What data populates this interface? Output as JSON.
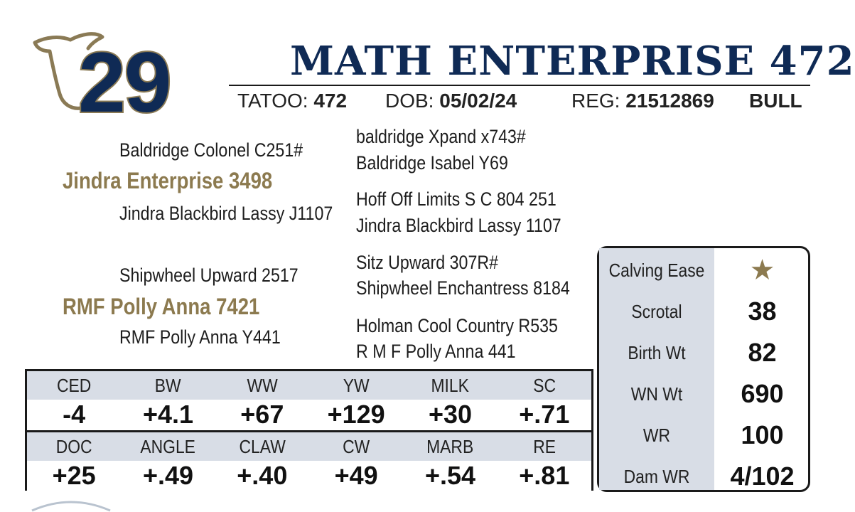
{
  "lot": {
    "number": "29"
  },
  "animal": {
    "name": "MATH ENTERPRISE 472",
    "tattoo_label": "TATOO:",
    "tattoo": "472",
    "dob_label": "DOB:",
    "dob": "05/02/24",
    "reg_label": "REG:",
    "reg": "21512869",
    "sex": "BULL"
  },
  "pedigree": {
    "sire": "Jindra Enterprise 3498",
    "sire_sire": "Baldridge Colonel C251#",
    "sire_dam": "Jindra Blackbird Lassy J1107",
    "sss": "baldridge Xpand x743#",
    "ssd": "Baldridge Isabel Y69",
    "sds": "Hoff Off Limits S C 804 251",
    "sdd": "Jindra Blackbird Lassy 1107",
    "dam": "RMF Polly Anna 7421",
    "dam_sire": "Shipwheel Upward 2517",
    "dam_dam": "RMF Polly Anna Y441",
    "dss": "Sitz Upward 307R#",
    "dsd": "Shipwheel Enchantress 8184",
    "dds": "Holman Cool Country R535",
    "ddd": "R M F Polly Anna 441"
  },
  "epd": {
    "row1": {
      "headers": [
        "CED",
        "BW",
        "WW",
        "YW",
        "MILK",
        "SC"
      ],
      "values": [
        "-4",
        "+4.1",
        "+67",
        "+129",
        "+30",
        "+.71"
      ]
    },
    "row2": {
      "headers": [
        "DOC",
        "ANGLE",
        "CLAW",
        "CW",
        "MARB",
        "RE"
      ],
      "values": [
        "+25",
        "+.49",
        "+.40",
        "+49",
        "+.54",
        "+.81"
      ]
    }
  },
  "stats": [
    {
      "label": "Calving Ease",
      "value": "★"
    },
    {
      "label": "Scrotal",
      "value": "38"
    },
    {
      "label": "Birth Wt",
      "value": "82"
    },
    {
      "label": "WN Wt",
      "value": "690"
    },
    {
      "label": "WR",
      "value": "100"
    },
    {
      "label": "Dam WR",
      "value": "4/102"
    }
  ],
  "colors": {
    "navy": "#0f2a55",
    "gold": "#8c7a4f",
    "header_bg": "#d8dde6"
  },
  "icons": {
    "logo": "cow-head-outline-icon",
    "calving_ease": "star-icon"
  }
}
